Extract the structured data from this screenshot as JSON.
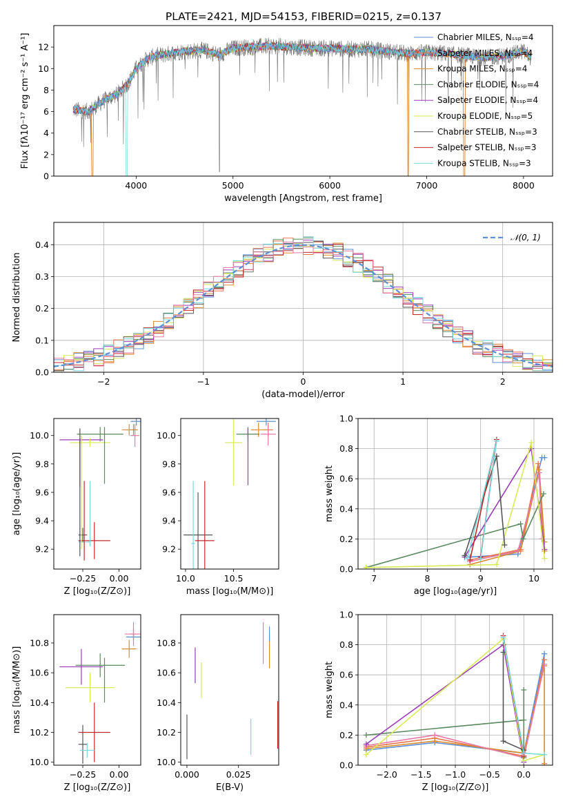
{
  "title": "PLATE=2421, MJD=54153, FIBERID=0215, z=0.137",
  "colors": {
    "chabrier_miles": "#5b8fd6",
    "salpeter_miles": "#e8734a",
    "kroupa_miles": "#d98a2b",
    "chabrier_elodie": "#5a8a5e",
    "salpeter_elodie": "#9a3bb5",
    "kroupa_elodie": "#d8ea56",
    "chabrier_stelib": "#555555",
    "salpeter_stelib": "#c0282b",
    "kroupa_stelib": "#79d9df",
    "pink": "#e77aa6",
    "normal": "#5b8fd6"
  },
  "chart_data": [
    {
      "id": "spectrum",
      "type": "line",
      "xlabel": "wavelength [Angstrom, rest frame]",
      "ylabel": "Flux [fλ10⁻¹⁷ erg cm⁻² s⁻¹ A⁻¹]",
      "xlim": [
        3150,
        8300
      ],
      "ylim": [
        0,
        14
      ],
      "xticks": [
        4000,
        5000,
        6000,
        7000,
        8000
      ],
      "yticks": [
        0,
        2,
        4,
        6,
        8,
        10,
        12
      ],
      "grid": false,
      "legend_position": "top-right",
      "legend": [
        {
          "label": "Chabrier MILES, N_SSP=4",
          "color": "chabrier_miles"
        },
        {
          "label": "Salpeter MILES, N_SSP=4",
          "color": "salpeter_miles"
        },
        {
          "label": "Kroupa MILES, N_SSP=4",
          "color": "kroupa_miles"
        },
        {
          "label": "Chabrier ELODIE, N_SSP=4",
          "color": "chabrier_elodie"
        },
        {
          "label": "Salpeter ELODIE, N_SSP=4",
          "color": "salpeter_elodie"
        },
        {
          "label": "Kroupa ELODIE, N_SSP=5",
          "color": "kroupa_elodie"
        },
        {
          "label": "Chabrier STELIB, N_SSP=3",
          "color": "chabrier_stelib"
        },
        {
          "label": "Salpeter STELIB, N_SSP=3",
          "color": "salpeter_stelib"
        },
        {
          "label": "Kroupa STELIB, N_SSP=3",
          "color": "kroupa_stelib"
        }
      ],
      "model_envelope": {
        "x": [
          3350,
          3500,
          3600,
          3700,
          3800,
          3870,
          3930,
          4000,
          4100,
          4200,
          4300,
          4400,
          4500,
          4700,
          4861,
          5000,
          5200,
          5400,
          5600,
          5800,
          6000,
          6200,
          6400,
          6600,
          6800,
          7000,
          7200,
          7400,
          7600,
          7800,
          8000,
          8080
        ],
        "y": [
          6.2,
          6.0,
          6.6,
          7.2,
          7.6,
          8.2,
          8.8,
          10.0,
          10.8,
          11.2,
          11.3,
          11.5,
          11.6,
          11.7,
          11.3,
          11.9,
          12.0,
          12.1,
          12.0,
          11.9,
          11.9,
          11.8,
          11.8,
          11.6,
          11.4,
          11.5,
          11.4,
          11.2,
          11.0,
          11.2,
          11.6,
          11.0
        ]
      }
    },
    {
      "id": "residuals",
      "type": "step",
      "xlabel": "(data-model)/error",
      "ylabel": "Normed distribution",
      "xlim": [
        -2.5,
        2.5
      ],
      "ylim": [
        0,
        0.47
      ],
      "xticks": [
        -2,
        -1,
        0,
        1,
        2
      ],
      "xticklabels": [
        "−2",
        "−1",
        "0",
        "1",
        "2"
      ],
      "yticks": [
        0.0,
        0.1,
        0.2,
        0.3,
        0.4
      ],
      "yticklabels": [
        "0.0",
        "0.1",
        "0.2",
        "0.3",
        "0.4"
      ],
      "grid": true,
      "legend_position": "top-right",
      "legend": [
        {
          "label": "𝒩(0, 1)",
          "style": "dashed",
          "color": "normal"
        }
      ],
      "bin_width": 0.1,
      "bin_start": -2.5,
      "histogram_peak": 0.4
    },
    {
      "id": "age_vs_Z",
      "type": "errorbar",
      "xlabel": "Z [log₁₀(Z/Z⊙)]",
      "ylabel": "age  [log₁₀(age/yr)]",
      "xlim": [
        -0.45,
        0.15
      ],
      "ylim": [
        9.06,
        10.12
      ],
      "xticks": [
        -0.25,
        0.0
      ],
      "xticklabels": [
        "−0.25",
        "0.00"
      ],
      "yticks": [
        9.2,
        9.4,
        9.6,
        9.8,
        10.0
      ],
      "yticklabels": [
        "9.2",
        "9.4",
        "9.6",
        "9.8",
        "10.0"
      ],
      "grid": false,
      "points": [
        {
          "color": "chabrier_miles",
          "x": 0.12,
          "y": 10.1,
          "xerr": 0.04,
          "yerr": 0.03
        },
        {
          "color": "salpeter_miles",
          "x": 0.1,
          "y": 10.04,
          "xerr": 0.03,
          "yerr": 0.04
        },
        {
          "color": "kroupa_miles",
          "x": 0.07,
          "y": 10.04,
          "xerr": 0.05,
          "yerr": 0.04
        },
        {
          "color": "pink",
          "x": 0.11,
          "y": 10.0,
          "xerr": 0.03,
          "yerr": 0.08
        },
        {
          "color": "chabrier_elodie",
          "x": -0.13,
          "y": 10.01,
          "xerr": 0.16,
          "yerr": 0.05
        },
        {
          "color": "salpeter_elodie",
          "x": -0.26,
          "y": 9.97,
          "xerr": 0.15,
          "yerr": 0.03
        },
        {
          "color": "kroupa_elodie",
          "x": -0.2,
          "y": 9.95,
          "xerr": 0.14,
          "yerr": 0.03
        },
        {
          "color": "chabrier_stelib",
          "x": -0.25,
          "y": 9.3,
          "xerr": 0.03,
          "yerr": 0.05
        },
        {
          "color": "salpeter_stelib",
          "x": -0.17,
          "y": 9.26,
          "xerr": 0.11,
          "yerr": 0.13
        },
        {
          "color": "kroupa_stelib",
          "x": -0.24,
          "y": 9.25,
          "xerr": 0.04,
          "yerr": 0.05
        },
        {
          "color": "chabrier_elodie",
          "x": -0.1,
          "y": 9.86,
          "xerr": 0.0,
          "yerr": 0.2
        },
        {
          "color": "salpeter_elodie",
          "x": -0.27,
          "y": 9.81,
          "xerr": 0.0,
          "yerr": 0.17
        },
        {
          "color": "kroupa_elodie",
          "x": -0.26,
          "y": 9.6,
          "xerr": 0.0,
          "yerr": 0.4
        },
        {
          "color": "salpeter_stelib",
          "x": -0.24,
          "y": 9.4,
          "xerr": 0.0,
          "yerr": 0.28
        },
        {
          "color": "kroupa_stelib",
          "x": -0.2,
          "y": 9.45,
          "xerr": 0.0,
          "yerr": 0.23
        },
        {
          "color": "chabrier_stelib",
          "x": -0.27,
          "y": 9.6,
          "xerr": 0.0,
          "yerr": 0.45
        }
      ]
    },
    {
      "id": "age_vs_mass",
      "type": "errorbar",
      "xlabel": "mass [log₁₀(M/M⊙)]",
      "ylabel": "",
      "xlim": [
        9.95,
        10.97
      ],
      "ylim": [
        9.06,
        10.12
      ],
      "xticks": [
        10.0,
        10.5
      ],
      "xticklabels": [
        "10.0",
        "10.5"
      ],
      "yticks": [
        9.2,
        9.4,
        9.6,
        9.8,
        10.0
      ],
      "yticklabels": [
        "9.2",
        "9.4",
        "9.6",
        "9.8",
        "10.0"
      ],
      "grid": false,
      "points": [
        {
          "color": "chabrier_miles",
          "x": 10.84,
          "y": 10.1,
          "xerr": 0.1,
          "yerr": 0.03
        },
        {
          "color": "salpeter_miles",
          "x": 10.86,
          "y": 10.04,
          "xerr": 0.05,
          "yerr": 0.05
        },
        {
          "color": "kroupa_miles",
          "x": 10.76,
          "y": 10.04,
          "xerr": 0.08,
          "yerr": 0.05
        },
        {
          "color": "pink",
          "x": 10.86,
          "y": 10.01,
          "xerr": 0.08,
          "yerr": 0.08
        },
        {
          "color": "chabrier_elodie",
          "x": 10.65,
          "y": 10.01,
          "xerr": 0.12,
          "yerr": 0.05
        },
        {
          "color": "salpeter_elodie",
          "x": 10.65,
          "y": 9.85,
          "xerr": 0.0,
          "yerr": 0.2
        },
        {
          "color": "kroupa_elodie",
          "x": 10.5,
          "y": 9.95,
          "xerr": 0.09,
          "yerr": 0.3
        },
        {
          "color": "chabrier_stelib",
          "x": 10.13,
          "y": 9.3,
          "xerr": 0.15,
          "yerr": 0.3
        },
        {
          "color": "salpeter_stelib",
          "x": 10.2,
          "y": 9.26,
          "xerr": 0.1,
          "yerr": 0.42
        },
        {
          "color": "kroupa_stelib",
          "x": 10.08,
          "y": 9.24,
          "xerr": 0.02,
          "yerr": 0.44
        }
      ]
    },
    {
      "id": "weight_vs_age",
      "type": "line",
      "xlabel": "age  [log₁₀(age/yr)]",
      "ylabel": "mass weight",
      "xlim": [
        6.7,
        10.35
      ],
      "ylim": [
        0,
        1.0
      ],
      "xticks": [
        7,
        8,
        9,
        10
      ],
      "yticks": [
        0.0,
        0.2,
        0.4,
        0.6,
        0.8,
        1.0
      ],
      "yticklabels": [
        "0.0",
        "0.2",
        "0.4",
        "0.6",
        "0.8",
        "1.0"
      ],
      "grid": true,
      "series": [
        {
          "color": "chabrier_miles",
          "x": [
            8.8,
            9.7,
            10.15,
            10.2
          ],
          "y": [
            0.08,
            0.1,
            0.74,
            0.74
          ]
        },
        {
          "color": "salpeter_miles",
          "x": [
            8.8,
            9.75,
            10.08,
            10.2
          ],
          "y": [
            0.06,
            0.13,
            0.7,
            0.12
          ]
        },
        {
          "color": "kroupa_miles",
          "x": [
            8.8,
            9.75,
            10.1,
            10.2
          ],
          "y": [
            0.03,
            0.12,
            0.66,
            0.18
          ]
        },
        {
          "color": "pink",
          "x": [
            8.8,
            9.7,
            10.1,
            10.15
          ],
          "y": [
            0.05,
            0.12,
            0.64,
            0.2
          ]
        },
        {
          "color": "chabrier_elodie",
          "x": [
            6.85,
            9.75,
            9.8,
            10.18
          ],
          "y": [
            0.01,
            0.3,
            0.2,
            0.5
          ]
        },
        {
          "color": "salpeter_elodie",
          "x": [
            8.7,
            9.95,
            10.2
          ],
          "y": [
            0.08,
            0.8,
            0.13
          ]
        },
        {
          "color": "kroupa_elodie",
          "x": [
            6.85,
            9.3,
            9.95,
            10.2
          ],
          "y": [
            0.01,
            0.03,
            0.84,
            0.07
          ]
        },
        {
          "color": "chabrier_stelib",
          "x": [
            8.7,
            9.3,
            9.45
          ],
          "y": [
            0.09,
            0.75,
            0.16
          ]
        },
        {
          "color": "salpeter_stelib",
          "x": [
            8.8,
            9.3,
            9.0
          ],
          "y": [
            0.06,
            0.86,
            0.08
          ]
        },
        {
          "color": "kroupa_stelib",
          "x": [
            8.75,
            9.3,
            9.0
          ],
          "y": [
            0.07,
            0.85,
            0.07
          ]
        }
      ]
    },
    {
      "id": "mass_vs_Z",
      "type": "errorbar",
      "xlabel": "Z [log₁₀(Z/Z⊙)]",
      "ylabel": "mass [log₁₀(M/M⊙)]",
      "xlim": [
        -0.45,
        0.15
      ],
      "ylim": [
        9.98,
        10.99
      ],
      "xticks": [
        -0.25,
        0.0
      ],
      "xticklabels": [
        "−0.25",
        "0.00"
      ],
      "yticks": [
        10.0,
        10.2,
        10.4,
        10.6,
        10.8
      ],
      "yticklabels": [
        "10.0",
        "10.2",
        "10.4",
        "10.6",
        "10.8"
      ],
      "grid": false,
      "points": [
        {
          "color": "chabrier_miles",
          "x": 0.1,
          "y": 10.84,
          "xerr": 0.05,
          "yerr": 0.02
        },
        {
          "color": "salpeter_miles",
          "x": 0.1,
          "y": 10.86,
          "xerr": 0.03,
          "yerr": 0.04
        },
        {
          "color": "kroupa_miles",
          "x": 0.07,
          "y": 10.76,
          "xerr": 0.05,
          "yerr": 0.06
        },
        {
          "color": "pink",
          "x": 0.1,
          "y": 10.86,
          "xerr": 0.06,
          "yerr": 0.08
        },
        {
          "color": "chabrier_elodie",
          "x": -0.13,
          "y": 10.65,
          "xerr": 0.17,
          "yerr": 0.08
        },
        {
          "color": "salpeter_elodie",
          "x": -0.26,
          "y": 10.64,
          "xerr": 0.15,
          "yerr": 0.12
        },
        {
          "color": "kroupa_elodie",
          "x": -0.2,
          "y": 10.5,
          "xerr": 0.17,
          "yerr": 0.1
        },
        {
          "color": "chabrier_stelib",
          "x": -0.25,
          "y": 10.12,
          "xerr": 0.03,
          "yerr": 0.13
        },
        {
          "color": "salpeter_stelib",
          "x": -0.17,
          "y": 10.2,
          "xerr": 0.11,
          "yerr": 0.2
        },
        {
          "color": "kroupa_stelib",
          "x": -0.22,
          "y": 10.08,
          "xerr": 0.05,
          "yerr": 0.05
        },
        {
          "color": "chabrier_elodie",
          "x": -0.1,
          "y": 10.55,
          "xerr": 0.0,
          "yerr": 0.15
        }
      ]
    },
    {
      "id": "mass_vs_EBV",
      "type": "errorbar",
      "xlabel": "E(B-V)",
      "ylabel": "",
      "xlim": [
        -0.003,
        0.0445
      ],
      "ylim": [
        9.98,
        10.99
      ],
      "xticks": [
        0.0,
        0.025
      ],
      "xticklabels": [
        "0.000",
        "0.025"
      ],
      "yticks": [
        10.0,
        10.2,
        10.4,
        10.6,
        10.8
      ],
      "yticklabels": [
        "10.0",
        "10.2",
        "10.4",
        "10.6",
        "10.8"
      ],
      "grid": false,
      "points": [
        {
          "color": "chabrier_stelib",
          "x": 0.0,
          "y": 10.17,
          "xerr": 0.0,
          "yerr": 0.15
        },
        {
          "color": "salpeter_elodie",
          "x": 0.004,
          "y": 10.65,
          "xerr": 0.0,
          "yerr": 0.12
        },
        {
          "color": "kroupa_elodie",
          "x": 0.007,
          "y": 10.55,
          "xerr": 0.0,
          "yerr": 0.12
        },
        {
          "color": "kroupa_stelib",
          "x": 0.031,
          "y": 10.17,
          "xerr": 0.0,
          "yerr": 0.12
        },
        {
          "color": "pink",
          "x": 0.037,
          "y": 10.8,
          "xerr": 0.0,
          "yerr": 0.14
        },
        {
          "color": "kroupa_miles",
          "x": 0.04,
          "y": 10.75,
          "xerr": 0.0,
          "yerr": 0.12
        },
        {
          "color": "chabrier_miles",
          "x": 0.04,
          "y": 10.86,
          "xerr": 0.0,
          "yerr": 0.05
        },
        {
          "color": "salpeter_stelib",
          "x": 0.044,
          "y": 10.25,
          "xerr": 0.0,
          "yerr": 0.16
        }
      ]
    },
    {
      "id": "weight_vs_Z",
      "type": "line",
      "xlabel": "Z [log₁₀(Z/Z⊙)]",
      "ylabel": "mass weight",
      "xlim": [
        -2.42,
        0.42
      ],
      "ylim": [
        0,
        1.0
      ],
      "xticks": [
        -2.0,
        -1.5,
        -1.0,
        -0.5,
        0.0
      ],
      "xticklabels": [
        "−2.0",
        "−1.5",
        "−1.0",
        "−0.5",
        "0.0"
      ],
      "yticks": [
        0.0,
        0.2,
        0.4,
        0.6,
        0.8,
        1.0
      ],
      "yticklabels": [
        "0.0",
        "0.2",
        "0.4",
        "0.6",
        "0.8",
        "1.0"
      ],
      "grid": true,
      "series": [
        {
          "color": "chabrier_miles",
          "x": [
            -2.3,
            -1.3,
            0.0,
            0.3
          ],
          "y": [
            0.1,
            0.15,
            0.08,
            0.74
          ]
        },
        {
          "color": "salpeter_miles",
          "x": [
            -2.3,
            -1.3,
            0.0,
            0.3
          ],
          "y": [
            0.12,
            0.18,
            0.06,
            0.7
          ]
        },
        {
          "color": "kroupa_miles",
          "x": [
            -2.3,
            -1.3,
            0.0,
            0.3,
            0.3
          ],
          "y": [
            0.11,
            0.16,
            0.08,
            0.66,
            0.01
          ]
        },
        {
          "color": "pink",
          "x": [
            -2.3,
            -1.3,
            0.0,
            0.3
          ],
          "y": [
            0.13,
            0.2,
            0.05,
            0.67
          ]
        },
        {
          "color": "chabrier_elodie",
          "x": [
            -2.3,
            0.0,
            0.0,
            0.0
          ],
          "y": [
            0.2,
            0.3,
            0.5,
            0.05
          ]
        },
        {
          "color": "salpeter_elodie",
          "x": [
            -2.3,
            -0.3,
            0.0
          ],
          "y": [
            0.14,
            0.8,
            0.02
          ]
        },
        {
          "color": "kroupa_elodie",
          "x": [
            -2.3,
            -0.3,
            0.0,
            0.3
          ],
          "y": [
            0.07,
            0.84,
            0.03,
            0.07
          ]
        },
        {
          "color": "chabrier_stelib",
          "x": [
            -0.3,
            -0.3,
            0.0
          ],
          "y": [
            0.75,
            0.16,
            0.1
          ]
        },
        {
          "color": "salpeter_stelib",
          "x": [
            -0.3,
            0.0
          ],
          "y": [
            0.86,
            0.06
          ]
        },
        {
          "color": "kroupa_stelib",
          "x": [
            -0.3,
            0.0,
            0.3
          ],
          "y": [
            0.85,
            0.08,
            0.07
          ]
        }
      ]
    }
  ]
}
